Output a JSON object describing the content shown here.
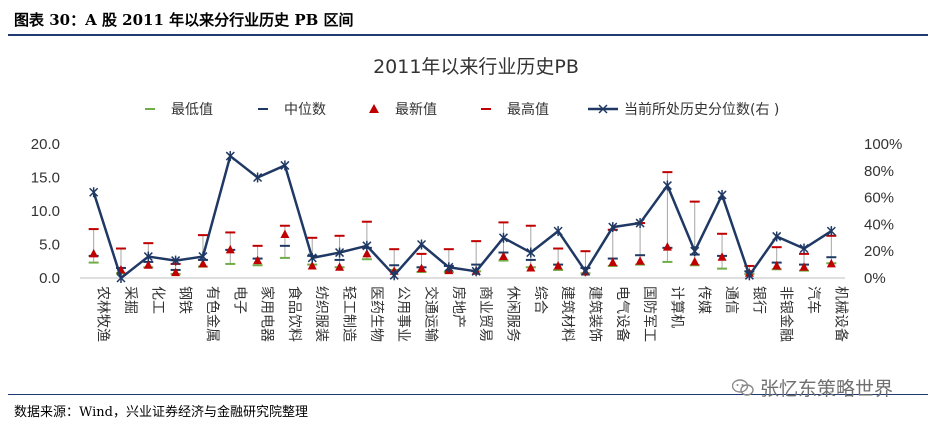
{
  "header": {
    "figure_title": "图表 30：A 股 2011 年以来分行业历史 PB 区间"
  },
  "footer": {
    "source": "数据来源：Wind，兴业证券经济与金融研究院整理"
  },
  "watermark": {
    "text": "张忆东策略世界",
    "icon": "wechat-icon"
  },
  "colors": {
    "min": "#70ad47",
    "median": "#1f3864",
    "latest": "#c00000",
    "max": "#c00000",
    "percentile": "#1f3864"
  },
  "chart_data": {
    "type": "line",
    "title": "2011年以来行业历史PB",
    "legend": [
      "最低值",
      "中位数",
      "最新值",
      "最高值",
      "当前所处历史分位数(右 )"
    ],
    "legend_position": "top",
    "categories": [
      "农林牧渔",
      "采掘",
      "化工",
      "钢铁",
      "有色金属",
      "电子",
      "家用电器",
      "食品饮料",
      "纺织服装",
      "轻工制造",
      "医药生物",
      "公用事业",
      "交通运输",
      "房地产",
      "商业贸易",
      "休闲服务",
      "综合",
      "建筑材料",
      "建筑装饰",
      "电气设备",
      "国防军工",
      "计算机",
      "传媒",
      "通信",
      "银行",
      "非银金融",
      "汽车",
      "机械设备"
    ],
    "left_axis": {
      "ylim": [
        0,
        20
      ],
      "ticks": [
        "0.0",
        "5.0",
        "10.0",
        "15.0",
        "20.0"
      ]
    },
    "right_axis": {
      "ylim": [
        0,
        100
      ],
      "ticks": [
        "0%",
        "20%",
        "40%",
        "60%",
        "80%",
        "100%"
      ]
    },
    "series": [
      {
        "name": "最低值",
        "values": [
          2.3,
          0.7,
          1.6,
          0.6,
          1.7,
          2.1,
          1.9,
          3.0,
          2.0,
          1.6,
          2.8,
          1.2,
          0.9,
          0.9,
          1.0,
          2.6,
          1.6,
          1.2,
          0.7,
          1.8,
          2.0,
          2.4,
          1.9,
          1.4,
          0.6,
          1.3,
          1.1,
          2.2
        ]
      },
      {
        "name": "中位数",
        "values": [
          3.3,
          1.5,
          2.4,
          1.2,
          2.7,
          4.2,
          2.9,
          4.8,
          3.3,
          2.7,
          4.5,
          1.9,
          1.6,
          1.8,
          2.0,
          3.8,
          2.7,
          2.0,
          1.5,
          2.9,
          3.4,
          4.5,
          3.5,
          3.3,
          1.0,
          2.3,
          2.0,
          3.1
        ]
      },
      {
        "name": "最新值",
        "values": [
          3.6,
          1.2,
          1.9,
          0.8,
          2.1,
          4.2,
          2.6,
          6.5,
          1.8,
          1.6,
          3.6,
          1.0,
          1.4,
          1.1,
          1.0,
          3.2,
          1.5,
          1.8,
          0.9,
          2.3,
          2.5,
          4.6,
          2.4,
          3.1,
          0.7,
          1.8,
          1.6,
          2.1
        ]
      },
      {
        "name": "最高值",
        "values": [
          7.3,
          4.4,
          5.2,
          2.1,
          6.4,
          6.8,
          4.8,
          7.8,
          6.0,
          6.3,
          8.4,
          4.3,
          3.6,
          4.3,
          5.5,
          8.3,
          7.8,
          4.4,
          4.0,
          7.2,
          8.2,
          15.8,
          11.4,
          6.6,
          1.8,
          4.6,
          3.6,
          6.3
        ]
      },
      {
        "name": "当前所处历史分位数(右 )",
        "axis": "right",
        "values": [
          64,
          0,
          16,
          13,
          16,
          91,
          75,
          84,
          15,
          19,
          24,
          2,
          25,
          8,
          5,
          30,
          19,
          35,
          5,
          38,
          41,
          69,
          20,
          62,
          2,
          31,
          22,
          35
        ]
      }
    ]
  }
}
